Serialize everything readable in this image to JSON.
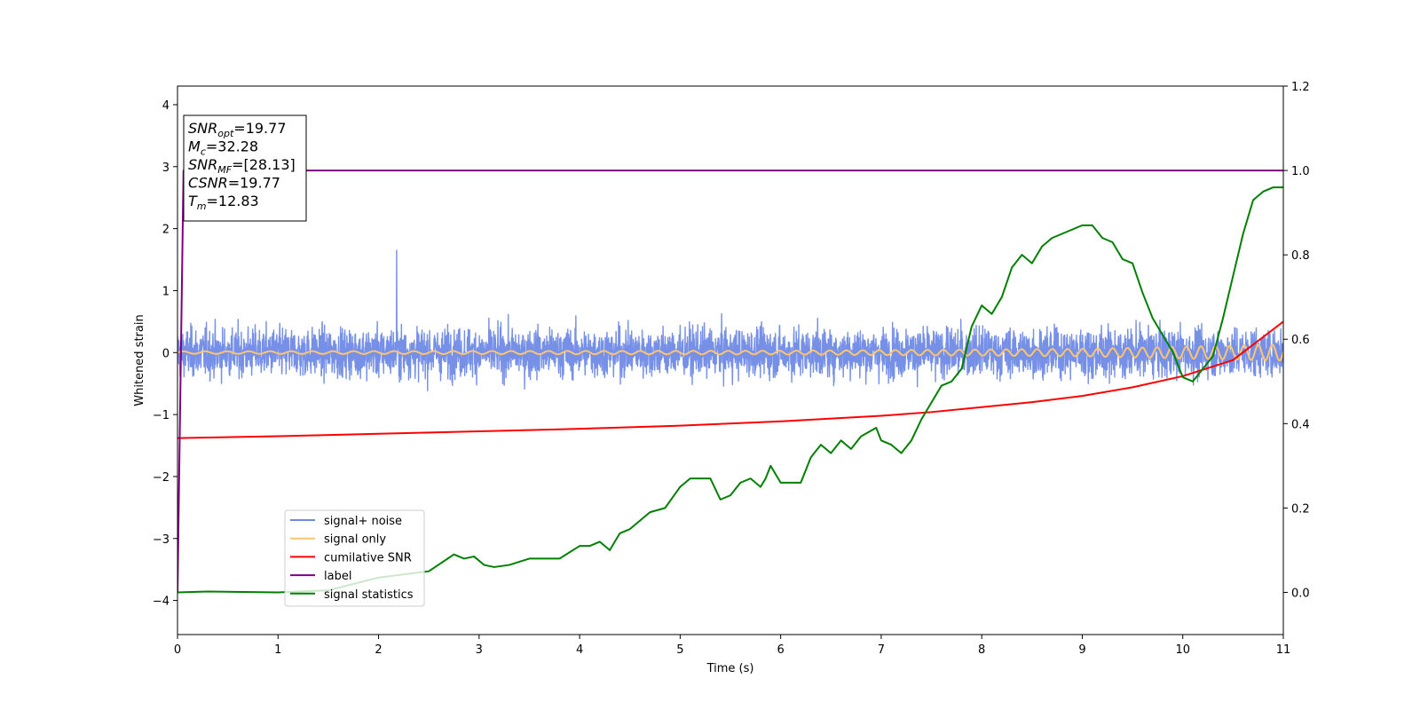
{
  "chart_data": {
    "type": "line",
    "xlabel": "Time (s)",
    "ylabel": "Whitened strain",
    "xlim": [
      0,
      11
    ],
    "ylim_left": [
      -4.55,
      4.3
    ],
    "ylim_right": [
      -0.1,
      1.2
    ],
    "x_ticks": [
      "0",
      "1",
      "2",
      "3",
      "4",
      "5",
      "6",
      "7",
      "8",
      "9",
      "10",
      "11"
    ],
    "y_left_ticks": [
      "−4",
      "−3",
      "−2",
      "−1",
      "0",
      "1",
      "2",
      "3",
      "4"
    ],
    "y_right_ticks": [
      "0.0",
      "0.2",
      "0.4",
      "0.6",
      "0.8",
      "1.0",
      "1.2"
    ],
    "annotation": [
      {
        "sym": "SNR",
        "sub": "opt",
        "value": "=19.77"
      },
      {
        "sym": "M",
        "sub": "c",
        "value": "=32.28"
      },
      {
        "sym": "SNR",
        "sub": "MF",
        "value": "=[28.13]"
      },
      {
        "sym": "CSNR",
        "sub": "",
        "value": "=19.77"
      },
      {
        "sym": "T",
        "sub": "m",
        "value": "=12.83"
      }
    ],
    "legend_position": "lower-left",
    "series": [
      {
        "name": "signal+ noise",
        "color": "#6f8ae6",
        "axis": "left",
        "kind": "noise",
        "amplitude_envelope": 0.6,
        "peak": 1.65
      },
      {
        "name": "signal only",
        "color": "#ffc56e",
        "axis": "left",
        "kind": "chirp",
        "amplitude": [
          [
            0,
            0.02
          ],
          [
            6,
            0.03
          ],
          [
            9,
            0.06
          ],
          [
            11,
            0.13
          ]
        ]
      },
      {
        "name": "cumilative SNR",
        "color": "#ff0000",
        "axis": "left",
        "x": [
          0,
          1,
          2,
          3,
          4,
          5,
          6,
          7,
          7.5,
          8,
          8.5,
          9,
          9.5,
          10,
          10.5,
          11
        ],
        "y": [
          -1.38,
          -1.35,
          -1.31,
          -1.27,
          -1.23,
          -1.18,
          -1.11,
          -1.02,
          -0.96,
          -0.88,
          -0.8,
          -0.7,
          -0.56,
          -0.38,
          -0.12,
          0.5
        ]
      },
      {
        "name": "label",
        "color": "#800080",
        "axis": "right",
        "x": [
          0,
          0.06,
          11
        ],
        "y": [
          0,
          1.0,
          1.0
        ]
      },
      {
        "name": "signal statistics",
        "color": "#008000",
        "axis": "right",
        "x": [
          0,
          0.3,
          1,
          1.5,
          2,
          2.5,
          2.75,
          2.85,
          2.95,
          3.05,
          3.15,
          3.3,
          3.5,
          3.8,
          4.0,
          4.1,
          4.2,
          4.3,
          4.4,
          4.5,
          4.7,
          4.85,
          5.0,
          5.1,
          5.2,
          5.3,
          5.4,
          5.5,
          5.6,
          5.7,
          5.8,
          5.85,
          5.9,
          6.0,
          6.1,
          6.2,
          6.3,
          6.4,
          6.5,
          6.6,
          6.7,
          6.8,
          6.95,
          7.0,
          7.1,
          7.2,
          7.3,
          7.4,
          7.5,
          7.6,
          7.7,
          7.8,
          7.9,
          8.0,
          8.1,
          8.2,
          8.3,
          8.4,
          8.5,
          8.6,
          8.7,
          8.8,
          8.9,
          9.0,
          9.1,
          9.2,
          9.3,
          9.4,
          9.5,
          9.6,
          9.7,
          9.8,
          9.9,
          10.0,
          10.1,
          10.2,
          10.3,
          10.4,
          10.5,
          10.6,
          10.7,
          10.8,
          10.9,
          11.0
        ],
        "y": [
          0.0,
          0.002,
          0.0,
          0.005,
          0.035,
          0.05,
          0.09,
          0.08,
          0.085,
          0.065,
          0.06,
          0.065,
          0.08,
          0.08,
          0.11,
          0.11,
          0.12,
          0.1,
          0.14,
          0.15,
          0.19,
          0.2,
          0.25,
          0.27,
          0.27,
          0.27,
          0.22,
          0.23,
          0.26,
          0.27,
          0.25,
          0.27,
          0.3,
          0.26,
          0.26,
          0.26,
          0.32,
          0.35,
          0.33,
          0.36,
          0.34,
          0.37,
          0.39,
          0.36,
          0.35,
          0.33,
          0.36,
          0.41,
          0.45,
          0.49,
          0.5,
          0.53,
          0.63,
          0.68,
          0.66,
          0.7,
          0.77,
          0.8,
          0.78,
          0.82,
          0.84,
          0.85,
          0.86,
          0.87,
          0.87,
          0.84,
          0.83,
          0.79,
          0.78,
          0.71,
          0.65,
          0.61,
          0.57,
          0.51,
          0.5,
          0.53,
          0.56,
          0.65,
          0.75,
          0.85,
          0.93,
          0.95,
          0.96,
          0.96
        ]
      }
    ]
  }
}
